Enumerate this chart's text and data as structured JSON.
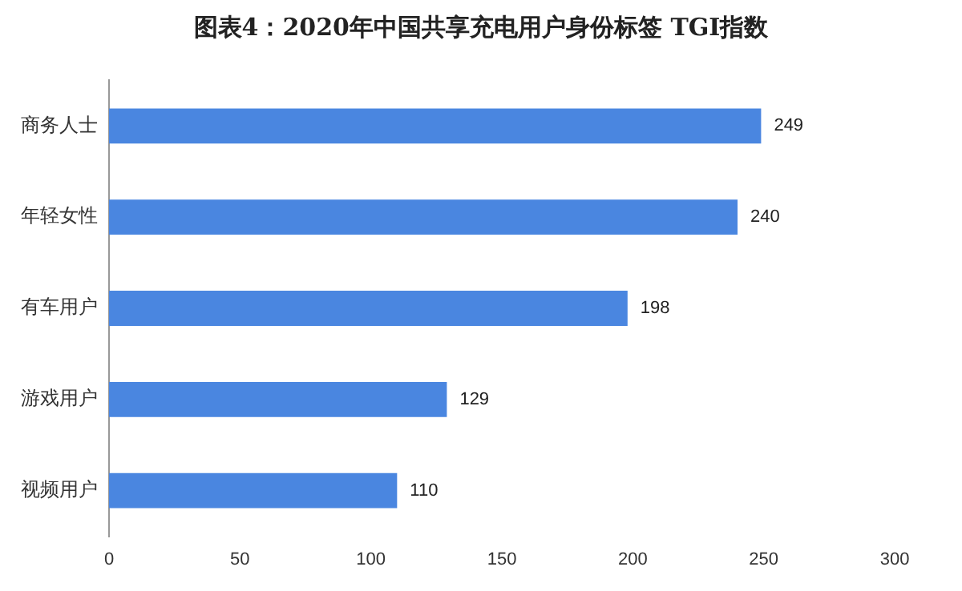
{
  "chart_data": {
    "type": "bar",
    "orientation": "horizontal",
    "title": "图表4：2020年中国共享充电用户身份标签 TGI指数",
    "categories": [
      "商务人士",
      "年轻女性",
      "有车用户",
      "游戏用户",
      "视频用户"
    ],
    "values": [
      249,
      240,
      198,
      129,
      110
    ],
    "color": "#4a86e0",
    "xlim": [
      0,
      300
    ],
    "xticks": [
      0,
      50,
      100,
      150,
      200,
      250,
      300
    ],
    "grid": false,
    "data_labels": true
  }
}
